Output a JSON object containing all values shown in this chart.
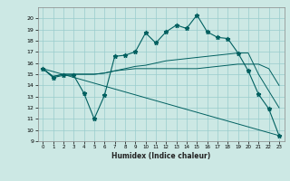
{
  "xlabel": "Humidex (Indice chaleur)",
  "background_color": "#cce8e4",
  "grid_color": "#99cccc",
  "line_color": "#006060",
  "xlim": [
    -0.5,
    23.5
  ],
  "ylim": [
    9,
    21
  ],
  "xticks": [
    0,
    1,
    2,
    3,
    4,
    5,
    6,
    7,
    8,
    9,
    10,
    11,
    12,
    13,
    14,
    15,
    16,
    17,
    18,
    19,
    20,
    21,
    22,
    23
  ],
  "yticks": [
    9,
    10,
    11,
    12,
    13,
    14,
    15,
    16,
    17,
    18,
    19,
    20
  ],
  "line1_x": [
    0,
    1,
    2,
    3,
    4,
    5,
    6,
    7,
    8,
    9,
    10,
    11,
    12,
    13,
    14,
    15,
    16,
    17,
    18,
    19,
    20,
    21,
    22,
    23
  ],
  "line1_y": [
    15.5,
    14.7,
    14.9,
    14.9,
    13.3,
    11.0,
    13.1,
    16.6,
    16.7,
    17.0,
    18.7,
    17.8,
    18.8,
    19.4,
    19.1,
    20.3,
    18.8,
    18.3,
    18.2,
    16.9,
    15.3,
    13.2,
    11.9,
    9.5
  ],
  "line2_x": [
    0,
    1,
    2,
    3,
    4,
    5,
    6,
    7,
    8,
    9,
    10,
    11,
    12,
    13,
    14,
    15,
    16,
    17,
    18,
    19,
    20,
    21,
    22,
    23
  ],
  "line2_y": [
    15.5,
    14.8,
    15.0,
    15.0,
    15.0,
    15.0,
    15.1,
    15.3,
    15.4,
    15.5,
    15.5,
    15.5,
    15.5,
    15.5,
    15.5,
    15.5,
    15.6,
    15.7,
    15.8,
    15.9,
    15.9,
    15.9,
    15.5,
    14.0
  ],
  "line3_x": [
    0,
    1,
    2,
    3,
    4,
    5,
    6,
    7,
    8,
    9,
    10,
    11,
    12,
    13,
    14,
    15,
    16,
    17,
    18,
    19,
    20,
    21,
    22,
    23
  ],
  "line3_y": [
    15.5,
    14.8,
    15.0,
    15.0,
    15.0,
    15.0,
    15.1,
    15.3,
    15.5,
    15.7,
    15.8,
    16.0,
    16.2,
    16.3,
    16.4,
    16.5,
    16.6,
    16.7,
    16.8,
    16.9,
    16.9,
    15.0,
    13.5,
    12.0
  ],
  "line4_x": [
    0,
    23
  ],
  "line4_y": [
    15.5,
    9.5
  ]
}
